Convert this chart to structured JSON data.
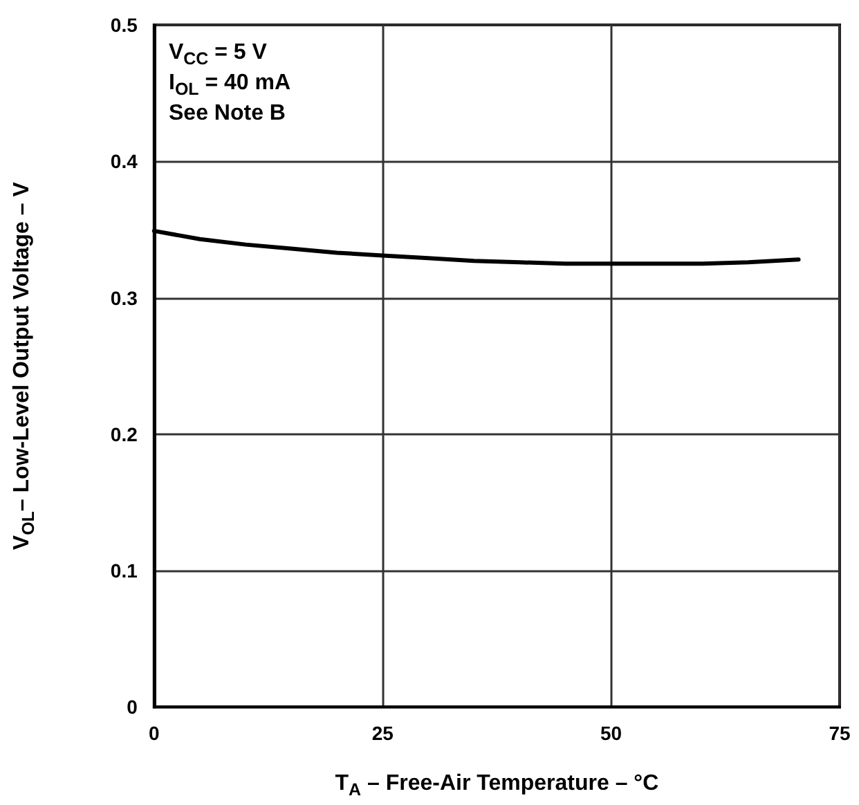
{
  "chart_data": {
    "type": "line",
    "xlabel": "T$_{A}$ – Free-Air Temperature – °C",
    "ylabel": "V$_{OL}$– Low-Level Output Voltage – V",
    "annotations": [
      "V$_{CC}$ = 5 V",
      "I$_{OL}$ = 40 mA",
      "See Note B"
    ],
    "xlim": [
      0,
      75
    ],
    "xticks": [
      0,
      25,
      50,
      75
    ],
    "ylim": [
      0,
      0.5
    ],
    "yticks": [
      0,
      0.1,
      0.2,
      0.3,
      0.4,
      0.5
    ],
    "grid": true,
    "marker": "none",
    "line_style": "solid",
    "series": [
      {
        "color": "#000000",
        "x": [
          0,
          5,
          10,
          15,
          20,
          25,
          30,
          35,
          40,
          45,
          50,
          55,
          60,
          65,
          70.5
        ],
        "values": [
          0.349,
          0.343,
          0.339,
          0.336,
          0.333,
          0.331,
          0.329,
          0.327,
          0.326,
          0.325,
          0.325,
          0.325,
          0.325,
          0.326,
          0.328
        ]
      }
    ]
  }
}
